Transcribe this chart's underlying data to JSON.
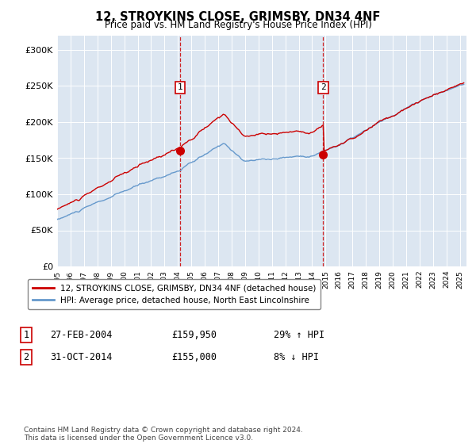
{
  "title": "12, STROYKINS CLOSE, GRIMSBY, DN34 4NF",
  "subtitle": "Price paid vs. HM Land Registry's House Price Index (HPI)",
  "hpi_color": "#6699cc",
  "price_color": "#cc0000",
  "dashed_color": "#cc0000",
  "background_color": "#dce6f1",
  "ylim": [
    0,
    320000
  ],
  "yticks": [
    0,
    50000,
    100000,
    150000,
    200000,
    250000,
    300000
  ],
  "ytick_labels": [
    "£0",
    "£50K",
    "£100K",
    "£150K",
    "£200K",
    "£250K",
    "£300K"
  ],
  "xlim_start": 1995.0,
  "xlim_end": 2025.5,
  "transaction1_date": 2004.15,
  "transaction1_price": 159950,
  "transaction2_date": 2014.83,
  "transaction2_price": 155000,
  "legend_label_price": "12, STROYKINS CLOSE, GRIMSBY, DN34 4NF (detached house)",
  "legend_label_hpi": "HPI: Average price, detached house, North East Lincolnshire",
  "annotation1_label": "1",
  "annotation1_date": "27-FEB-2004",
  "annotation1_price": "£159,950",
  "annotation1_hpi": "29% ↑ HPI",
  "annotation2_label": "2",
  "annotation2_date": "31-OCT-2014",
  "annotation2_price": "£155,000",
  "annotation2_hpi": "8% ↓ HPI",
  "footer": "Contains HM Land Registry data © Crown copyright and database right 2024.\nThis data is licensed under the Open Government Licence v3.0."
}
